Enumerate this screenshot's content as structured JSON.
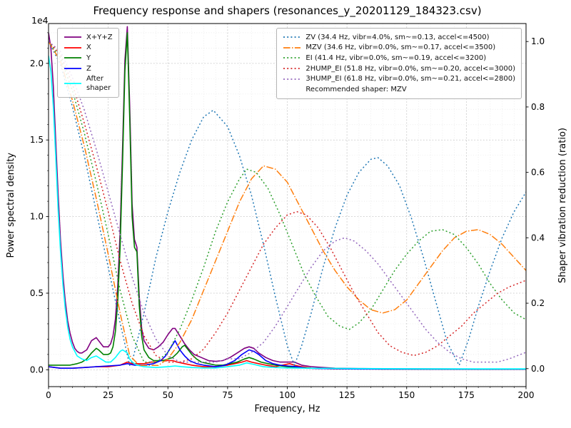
{
  "chart_data": {
    "type": "line",
    "title": "Frequency response and shapers (resonances_y_20201129_184323.csv)",
    "xlabel": "Frequency, Hz",
    "ylabel_left": "Power spectral density",
    "ylabel_right": "Shaper vibration reduction (ratio)",
    "xlim": [
      0,
      200
    ],
    "x_ticks": [
      0,
      25,
      50,
      75,
      100,
      125,
      150,
      175,
      200
    ],
    "left_axis": {
      "ticks": [
        0.0,
        0.5,
        1.0,
        1.5,
        2.0
      ],
      "offset_label": "1e4",
      "lim": [
        -0.11,
        2.26
      ],
      "minor_step": 0.1
    },
    "right_axis": {
      "ticks": [
        0.0,
        0.2,
        0.4,
        0.6,
        0.8,
        1.0
      ],
      "lim": [
        -0.055,
        1.055
      ]
    },
    "grid": {
      "major": true,
      "minor": true,
      "x_minor_step": 5
    },
    "recommended_shaper": "MZV",
    "legend_psd": {
      "items": [
        {
          "label": "X+Y+Z",
          "color": "#800080",
          "style": "solid"
        },
        {
          "label": "X",
          "color": "#ff0000",
          "style": "solid"
        },
        {
          "label": "Y",
          "color": "#008000",
          "style": "solid"
        },
        {
          "label": "Z",
          "color": "#0000ff",
          "style": "solid"
        },
        {
          "label": "After\nshaper",
          "color": "#00ffff",
          "style": "solid"
        }
      ]
    },
    "legend_shapers": {
      "items": [
        {
          "label": "ZV (34.4 Hz, vibr=4.0%, sm~=0.13, accel<=4500)",
          "color": "#1f77b4",
          "style": "dotted"
        },
        {
          "label": "MZV (34.6 Hz, vibr=0.0%, sm~=0.17, accel<=3500)",
          "color": "#ff7f0e",
          "style": "dashdot"
        },
        {
          "label": "EI (41.4 Hz, vibr=0.0%, sm~=0.19, accel<=3200)",
          "color": "#2ca02c",
          "style": "dotted"
        },
        {
          "label": "2HUMP_EI (51.8 Hz, vibr=0.0%, sm~=0.20, accel<=3000)",
          "color": "#d62728",
          "style": "dotted"
        },
        {
          "label": "3HUMP_EI (61.8 Hz, vibr=0.0%, sm~=0.21, accel<=2800)",
          "color": "#9467bd",
          "style": "dotted"
        }
      ],
      "footer": "Recommended shaper: MZV"
    },
    "psd_series": [
      {
        "name": "X+Y+Z",
        "color": "#800080",
        "axis": "left",
        "style": "solid",
        "x": [
          0,
          1,
          2,
          3,
          4,
          5,
          6,
          7,
          8,
          9,
          10,
          11,
          12,
          13,
          14,
          15,
          16,
          17,
          18,
          20,
          21,
          23,
          25,
          26,
          27,
          28,
          29,
          30,
          31,
          32,
          33,
          34,
          35,
          36,
          37,
          38,
          39,
          40,
          42,
          44,
          46,
          48,
          50,
          52,
          53,
          55,
          57,
          59,
          61,
          64,
          67,
          70,
          73,
          76,
          79,
          82,
          84,
          86,
          88,
          91,
          94,
          97,
          100,
          103,
          106,
          110,
          115,
          120,
          130,
          140,
          160,
          180,
          200
        ],
        "y": [
          2.2,
          2.1,
          1.85,
          1.5,
          1.15,
          0.85,
          0.62,
          0.45,
          0.32,
          0.24,
          0.18,
          0.14,
          0.12,
          0.11,
          0.11,
          0.12,
          0.13,
          0.16,
          0.19,
          0.21,
          0.19,
          0.15,
          0.15,
          0.17,
          0.22,
          0.33,
          0.55,
          0.9,
          1.45,
          2.02,
          2.24,
          1.73,
          1.08,
          0.85,
          0.8,
          0.48,
          0.27,
          0.19,
          0.14,
          0.13,
          0.15,
          0.18,
          0.23,
          0.27,
          0.27,
          0.22,
          0.17,
          0.13,
          0.1,
          0.08,
          0.06,
          0.055,
          0.06,
          0.08,
          0.11,
          0.14,
          0.15,
          0.14,
          0.11,
          0.08,
          0.06,
          0.05,
          0.05,
          0.05,
          0.03,
          0.02,
          0.015,
          0.01,
          0.008,
          0.007,
          0.006,
          0.005,
          0.005
        ]
      },
      {
        "name": "X",
        "color": "#ff0000",
        "axis": "left",
        "style": "solid",
        "x": [
          0,
          5,
          10,
          15,
          20,
          25,
          30,
          33,
          35,
          38,
          40,
          43,
          45,
          47,
          50,
          52,
          54,
          57,
          60,
          65,
          70,
          75,
          78,
          81,
          83,
          85,
          88,
          91,
          95,
          98,
          101,
          103,
          106,
          110,
          120,
          140,
          170,
          200
        ],
        "y": [
          0.02,
          0.01,
          0.01,
          0.015,
          0.02,
          0.02,
          0.03,
          0.05,
          0.04,
          0.04,
          0.04,
          0.05,
          0.05,
          0.06,
          0.06,
          0.06,
          0.05,
          0.04,
          0.03,
          0.02,
          0.02,
          0.03,
          0.04,
          0.05,
          0.06,
          0.05,
          0.04,
          0.03,
          0.02,
          0.03,
          0.04,
          0.03,
          0.02,
          0.01,
          0.006,
          0.005,
          0.004,
          0.004
        ]
      },
      {
        "name": "Y",
        "color": "#008000",
        "axis": "left",
        "style": "solid",
        "x": [
          0,
          3,
          6,
          9,
          12,
          14,
          16,
          18,
          20,
          21,
          23,
          25,
          26,
          27,
          28,
          29,
          30,
          31,
          32,
          33,
          34,
          35,
          36,
          37,
          38,
          39,
          40,
          42,
          44,
          46,
          48,
          50,
          52,
          54,
          56,
          57,
          58,
          60,
          62,
          64,
          67,
          70,
          73,
          76,
          79,
          82,
          84,
          86,
          89,
          92,
          95,
          100,
          105,
          110,
          120,
          140,
          160,
          180,
          200
        ],
        "y": [
          0.03,
          0.03,
          0.03,
          0.03,
          0.04,
          0.05,
          0.07,
          0.11,
          0.14,
          0.13,
          0.1,
          0.1,
          0.11,
          0.15,
          0.25,
          0.45,
          0.8,
          1.35,
          1.95,
          2.2,
          1.65,
          1.0,
          0.8,
          0.77,
          0.42,
          0.22,
          0.13,
          0.08,
          0.06,
          0.06,
          0.06,
          0.07,
          0.08,
          0.11,
          0.15,
          0.16,
          0.14,
          0.1,
          0.07,
          0.05,
          0.04,
          0.03,
          0.03,
          0.04,
          0.05,
          0.07,
          0.08,
          0.07,
          0.05,
          0.04,
          0.03,
          0.02,
          0.015,
          0.01,
          0.008,
          0.005,
          0.004,
          0.004,
          0.004
        ]
      },
      {
        "name": "Z",
        "color": "#0000ff",
        "axis": "left",
        "style": "solid",
        "x": [
          0,
          5,
          10,
          15,
          20,
          25,
          30,
          33,
          36,
          40,
          44,
          47,
          49,
          51,
          53,
          55,
          57,
          59,
          62,
          65,
          70,
          74,
          78,
          81,
          84,
          86,
          88,
          91,
          94,
          97,
          100,
          104,
          108,
          115,
          130,
          160,
          200
        ],
        "y": [
          0.02,
          0.01,
          0.01,
          0.015,
          0.02,
          0.025,
          0.03,
          0.04,
          0.03,
          0.03,
          0.04,
          0.06,
          0.09,
          0.14,
          0.19,
          0.13,
          0.09,
          0.06,
          0.04,
          0.03,
          0.02,
          0.03,
          0.06,
          0.1,
          0.13,
          0.12,
          0.1,
          0.06,
          0.04,
          0.03,
          0.025,
          0.02,
          0.01,
          0.008,
          0.005,
          0.004,
          0.004
        ]
      },
      {
        "name": "After shaper",
        "color": "#00ffff",
        "axis": "left",
        "style": "solid",
        "x": [
          0,
          1,
          2,
          3,
          4,
          5,
          6,
          7,
          8,
          9,
          10,
          12,
          14,
          16,
          18,
          20,
          22,
          24,
          26,
          28,
          29,
          30,
          31,
          32,
          33,
          34,
          35,
          37,
          40,
          45,
          50,
          53,
          56,
          60,
          65,
          70,
          75,
          80,
          83,
          86,
          90,
          95,
          100,
          110,
          130,
          160,
          200
        ],
        "y": [
          2.05,
          1.95,
          1.72,
          1.4,
          1.05,
          0.78,
          0.56,
          0.4,
          0.28,
          0.2,
          0.15,
          0.09,
          0.07,
          0.06,
          0.08,
          0.09,
          0.07,
          0.05,
          0.05,
          0.08,
          0.1,
          0.12,
          0.13,
          0.12,
          0.11,
          0.07,
          0.05,
          0.03,
          0.02,
          0.015,
          0.02,
          0.025,
          0.02,
          0.015,
          0.012,
          0.012,
          0.02,
          0.03,
          0.045,
          0.035,
          0.02,
          0.015,
          0.012,
          0.01,
          0.008,
          0.006,
          0.006
        ]
      }
    ],
    "shaper_series": [
      {
        "name": "ZV",
        "freq_hz": 34.4,
        "vibr": "4.0%",
        "smoothing": 0.13,
        "max_accel": 4500,
        "color": "#1f77b4",
        "axis": "right",
        "style": "dotted",
        "x": [
          0,
          5,
          10,
          15,
          20,
          25,
          30,
          34,
          35,
          40,
          45,
          50,
          55,
          60,
          65,
          69,
          75,
          80,
          85,
          90,
          95,
          100,
          103,
          106,
          110,
          115,
          120,
          125,
          130,
          135,
          138,
          142,
          147,
          152,
          157,
          162,
          167,
          172,
          176,
          180,
          185,
          190,
          195,
          200
        ],
        "y": [
          1.0,
          0.93,
          0.8,
          0.65,
          0.48,
          0.31,
          0.14,
          0.01,
          0.02,
          0.17,
          0.34,
          0.48,
          0.6,
          0.7,
          0.77,
          0.79,
          0.74,
          0.65,
          0.53,
          0.38,
          0.22,
          0.07,
          0.01,
          0.07,
          0.17,
          0.31,
          0.43,
          0.53,
          0.6,
          0.64,
          0.645,
          0.62,
          0.56,
          0.46,
          0.34,
          0.21,
          0.08,
          0.01,
          0.09,
          0.19,
          0.3,
          0.4,
          0.48,
          0.54
        ]
      },
      {
        "name": "MZV",
        "freq_hz": 34.6,
        "vibr": "0.0%",
        "smoothing": 0.17,
        "max_accel": 3500,
        "color": "#ff7f0e",
        "axis": "right",
        "style": "dashdot",
        "x": [
          0,
          5,
          10,
          15,
          20,
          25,
          30,
          34,
          38,
          42,
          46,
          50,
          55,
          60,
          65,
          70,
          75,
          80,
          85,
          90,
          95,
          100,
          105,
          110,
          115,
          120,
          125,
          130,
          135,
          140,
          145,
          150,
          155,
          160,
          165,
          170,
          175,
          180,
          185,
          190,
          195,
          200
        ],
        "y": [
          1.0,
          0.94,
          0.82,
          0.68,
          0.52,
          0.35,
          0.17,
          0.04,
          0.01,
          0.01,
          0.01,
          0.03,
          0.08,
          0.15,
          0.24,
          0.33,
          0.42,
          0.51,
          0.58,
          0.62,
          0.61,
          0.57,
          0.5,
          0.43,
          0.36,
          0.3,
          0.25,
          0.21,
          0.18,
          0.17,
          0.18,
          0.21,
          0.26,
          0.31,
          0.36,
          0.4,
          0.42,
          0.425,
          0.41,
          0.38,
          0.34,
          0.3
        ]
      },
      {
        "name": "EI",
        "freq_hz": 41.4,
        "vibr": "0.0%",
        "smoothing": 0.19,
        "max_accel": 3200,
        "color": "#2ca02c",
        "axis": "right",
        "style": "dotted",
        "x": [
          0,
          5,
          10,
          15,
          20,
          25,
          30,
          35,
          40,
          45,
          50,
          55,
          60,
          65,
          70,
          75,
          80,
          83,
          87,
          92,
          97,
          102,
          107,
          112,
          117,
          122,
          126,
          130,
          135,
          140,
          145,
          150,
          155,
          160,
          165,
          170,
          175,
          180,
          185,
          190,
          195,
          200
        ],
        "y": [
          1.0,
          0.95,
          0.85,
          0.72,
          0.57,
          0.41,
          0.24,
          0.1,
          0.02,
          0.02,
          0.05,
          0.12,
          0.21,
          0.31,
          0.42,
          0.51,
          0.58,
          0.61,
          0.6,
          0.55,
          0.47,
          0.38,
          0.29,
          0.22,
          0.16,
          0.13,
          0.12,
          0.14,
          0.18,
          0.24,
          0.3,
          0.35,
          0.39,
          0.42,
          0.425,
          0.41,
          0.37,
          0.32,
          0.26,
          0.21,
          0.17,
          0.15
        ]
      },
      {
        "name": "2HUMP_EI",
        "freq_hz": 51.8,
        "vibr": "0.0%",
        "smoothing": 0.2,
        "max_accel": 3000,
        "color": "#d62728",
        "axis": "right",
        "style": "dotted",
        "x": [
          0,
          5,
          10,
          15,
          20,
          25,
          30,
          35,
          40,
          45,
          50,
          55,
          60,
          65,
          70,
          75,
          80,
          85,
          90,
          95,
          100,
          104,
          108,
          113,
          118,
          123,
          128,
          133,
          138,
          143,
          148,
          153,
          158,
          163,
          168,
          173,
          178,
          183,
          188,
          193,
          200
        ],
        "y": [
          1.0,
          0.96,
          0.87,
          0.75,
          0.62,
          0.48,
          0.33,
          0.2,
          0.1,
          0.04,
          0.02,
          0.02,
          0.03,
          0.06,
          0.11,
          0.17,
          0.24,
          0.31,
          0.38,
          0.43,
          0.47,
          0.48,
          0.47,
          0.43,
          0.37,
          0.3,
          0.23,
          0.17,
          0.11,
          0.07,
          0.05,
          0.04,
          0.05,
          0.07,
          0.1,
          0.13,
          0.17,
          0.2,
          0.23,
          0.25,
          0.27
        ]
      },
      {
        "name": "3HUMP_EI",
        "freq_hz": 61.8,
        "vibr": "0.0%",
        "smoothing": 0.21,
        "max_accel": 2800,
        "color": "#9467bd",
        "axis": "right",
        "style": "dotted",
        "x": [
          0,
          5,
          10,
          15,
          20,
          25,
          30,
          35,
          40,
          45,
          50,
          55,
          60,
          65,
          70,
          75,
          80,
          85,
          90,
          95,
          100,
          105,
          110,
          115,
          120,
          124,
          128,
          133,
          138,
          143,
          148,
          153,
          158,
          163,
          168,
          173,
          178,
          183,
          188,
          193,
          200
        ],
        "y": [
          1.0,
          0.97,
          0.89,
          0.79,
          0.67,
          0.54,
          0.41,
          0.28,
          0.17,
          0.09,
          0.04,
          0.02,
          0.02,
          0.02,
          0.02,
          0.03,
          0.03,
          0.05,
          0.08,
          0.13,
          0.19,
          0.25,
          0.31,
          0.36,
          0.39,
          0.4,
          0.39,
          0.36,
          0.32,
          0.27,
          0.22,
          0.17,
          0.12,
          0.08,
          0.05,
          0.03,
          0.02,
          0.02,
          0.02,
          0.03,
          0.05
        ]
      }
    ]
  }
}
